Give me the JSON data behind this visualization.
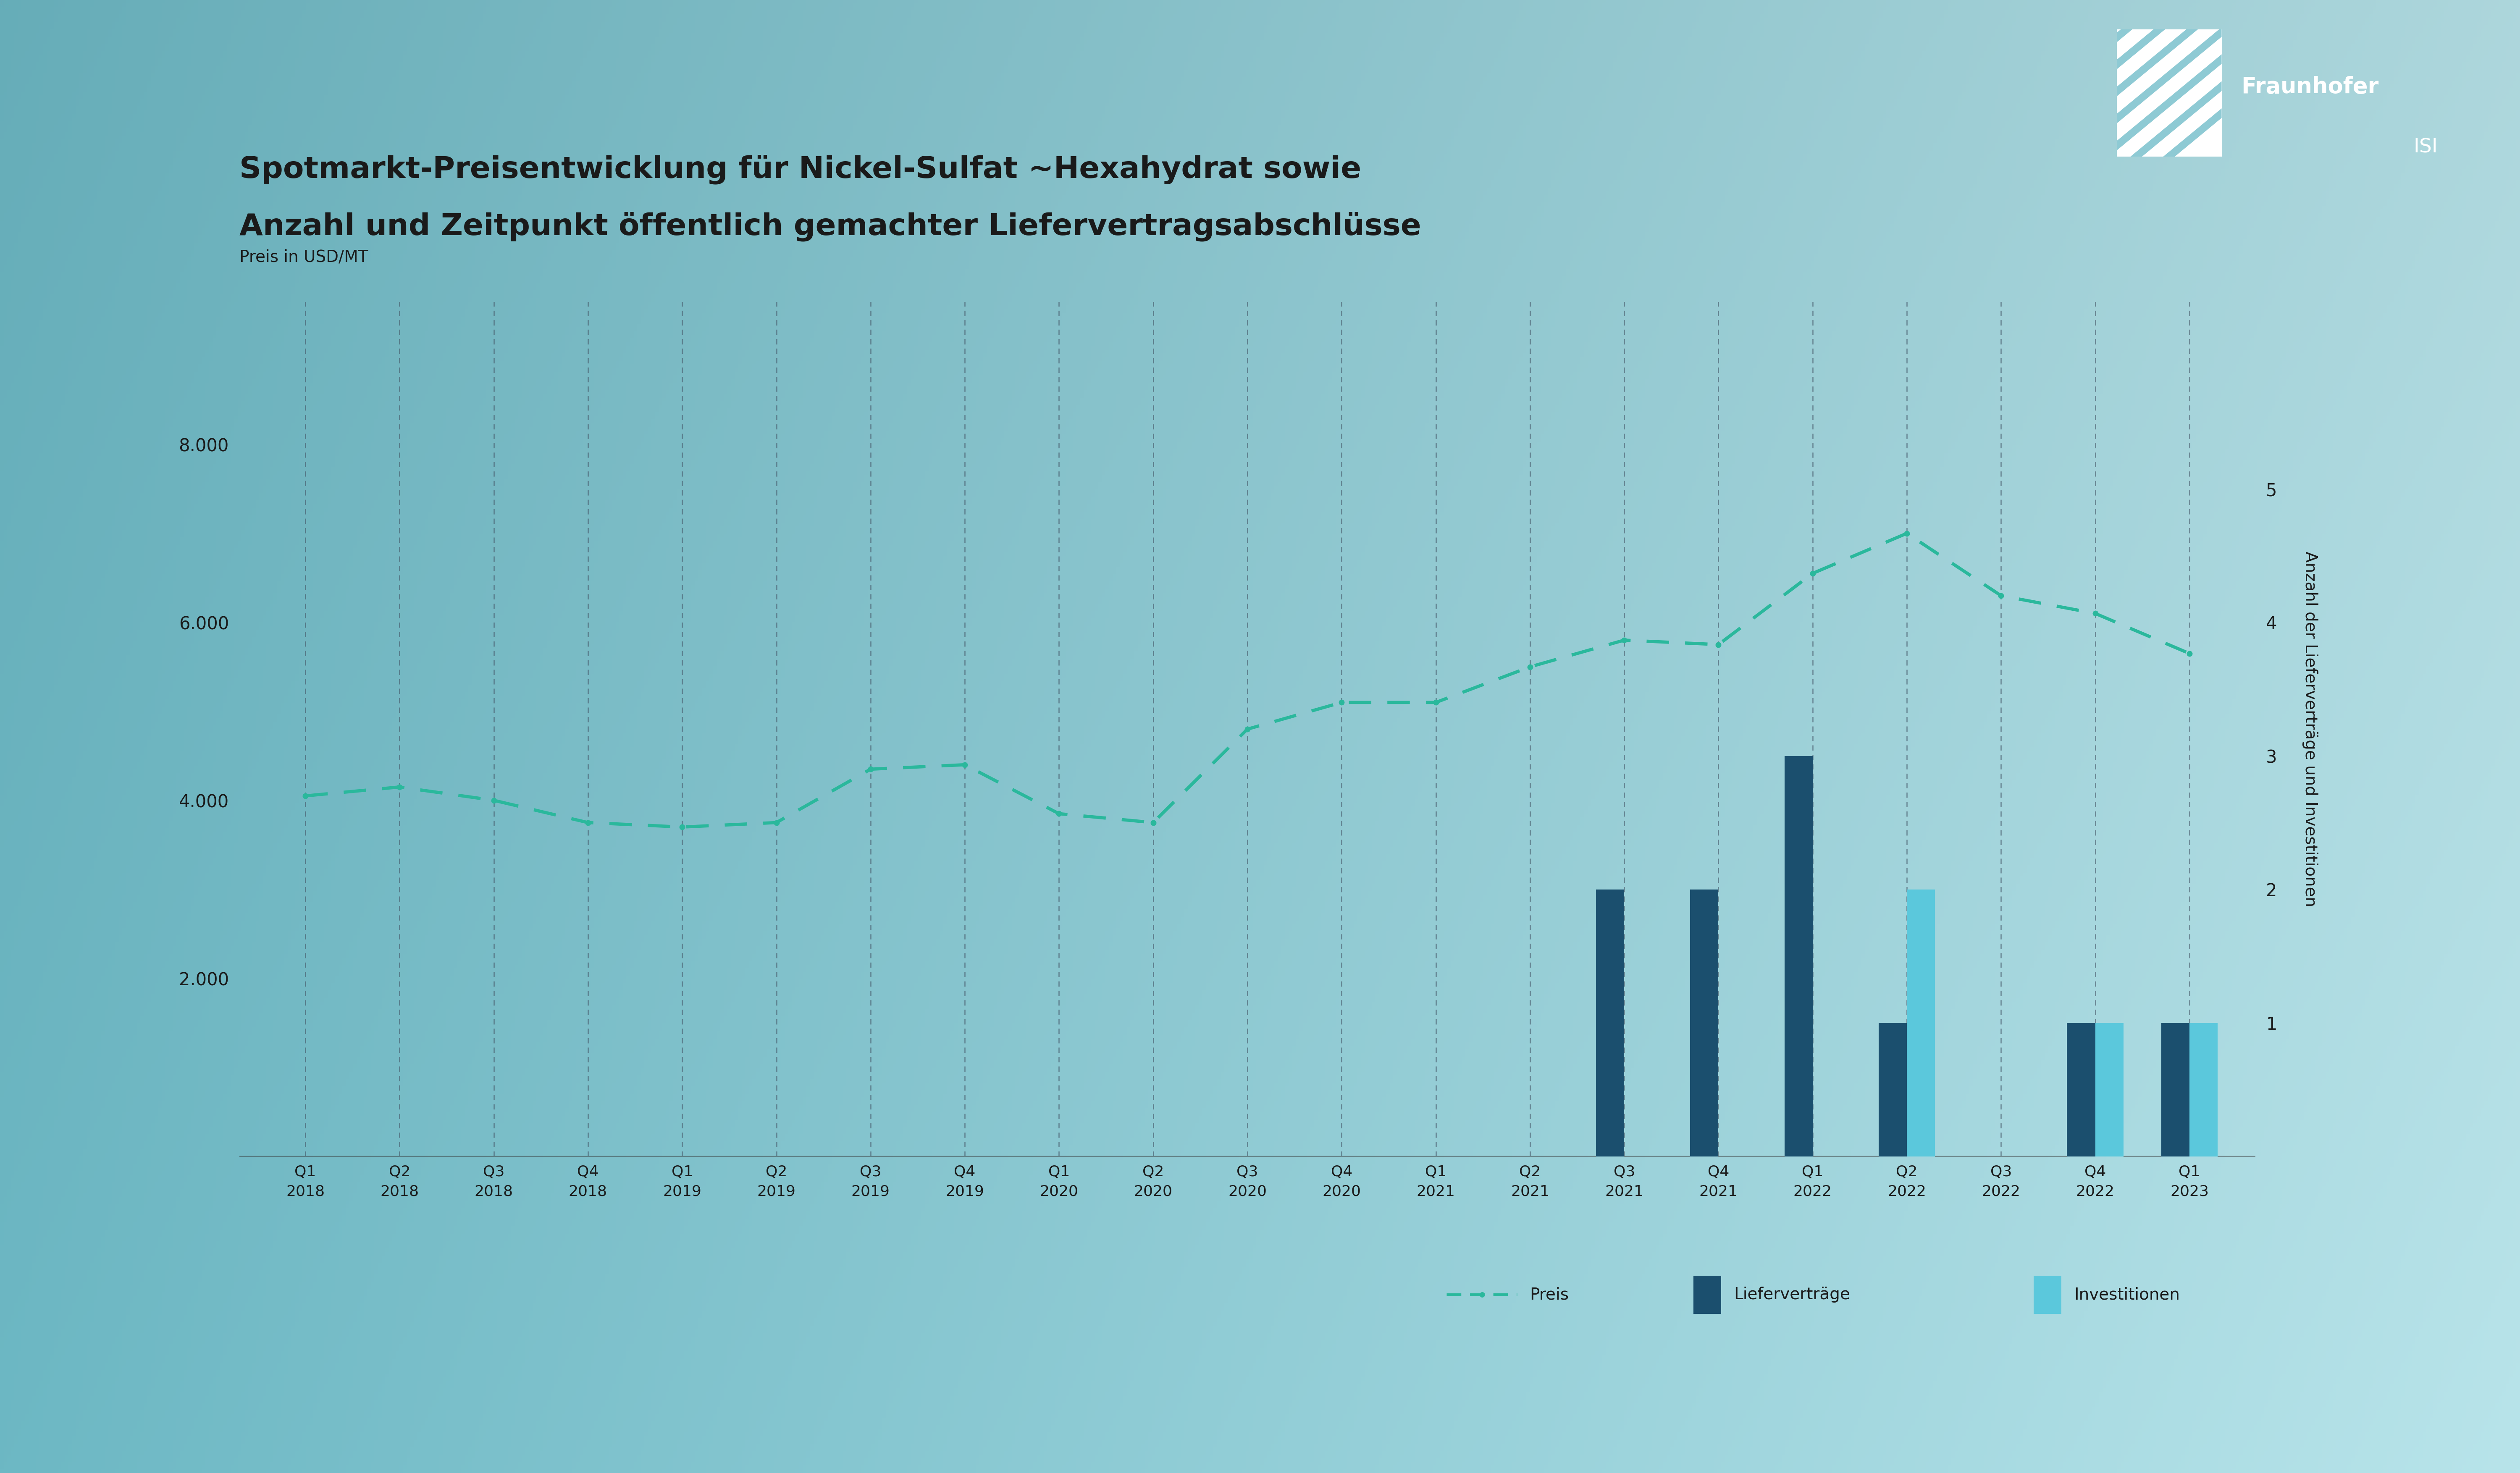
{
  "title_line1": "Spotmarkt-Preisentwicklung für Nickel-Sulfat ~Hexahydrat sowie",
  "title_line2": "Anzahl und Zeitpunkt öffentlich gemachter Liefervertragsabschlüsse",
  "ylabel_left": "Preis in USD/MT",
  "ylabel_right": "Anzahl der Lieferverträge und Investitionen",
  "categories": [
    "Q1\n2018",
    "Q2\n2018",
    "Q3\n2018",
    "Q4\n2018",
    "Q1\n2019",
    "Q2\n2019",
    "Q3\n2019",
    "Q4\n2019",
    "Q1\n2020",
    "Q2\n2020",
    "Q3\n2020",
    "Q4\n2020",
    "Q1\n2021",
    "Q2\n2021",
    "Q3\n2021",
    "Q4\n2021",
    "Q1\n2022",
    "Q2\n2022",
    "Q3\n2022",
    "Q4\n2022",
    "Q1\n2023"
  ],
  "price_data": [
    4050,
    4150,
    4000,
    3750,
    3700,
    3750,
    4350,
    4400,
    3850,
    3750,
    4800,
    5100,
    5100,
    5500,
    5800,
    5750,
    6550,
    7000,
    6300,
    6100,
    5650
  ],
  "liefervertraege": [
    0,
    0,
    0,
    0,
    0,
    0,
    0,
    0,
    0,
    0,
    0,
    0,
    0,
    0,
    2,
    2,
    3,
    1,
    0,
    1,
    1
  ],
  "investitionen": [
    0,
    0,
    0,
    0,
    0,
    0,
    0,
    0,
    0,
    0,
    0,
    0,
    0,
    0,
    0,
    0,
    0,
    2,
    0,
    1,
    1
  ],
  "ylim_left": [
    0,
    9600
  ],
  "ylim_right": [
    0,
    6.4
  ],
  "yticks_left": [
    2000,
    4000,
    6000,
    8000
  ],
  "yticks_right": [
    1,
    2,
    3,
    4,
    5
  ],
  "ytick_labels_left": [
    "2.000",
    "4.000",
    "6.000",
    "8.000"
  ],
  "ytick_labels_right": [
    "1",
    "2",
    "3",
    "4",
    "5"
  ],
  "bg_color_tl": "#6db8c4",
  "bg_color_tr": "#8ecad4",
  "bg_color_bl": "#98d5de",
  "bg_color_br": "#b8e4ea",
  "line_color": "#2ab89c",
  "bar_color_liefervertraege": "#1b4f6e",
  "bar_color_investitionen": "#5bc8dc",
  "text_color": "#1a1a1a",
  "grid_color": "#555566",
  "legend_line_label": "Preis",
  "legend_bar1_label": "Lieferverträge",
  "legend_bar2_label": "Investitionen",
  "fraunhofer_text": "Fraunhofer",
  "isi_text": "ISI"
}
